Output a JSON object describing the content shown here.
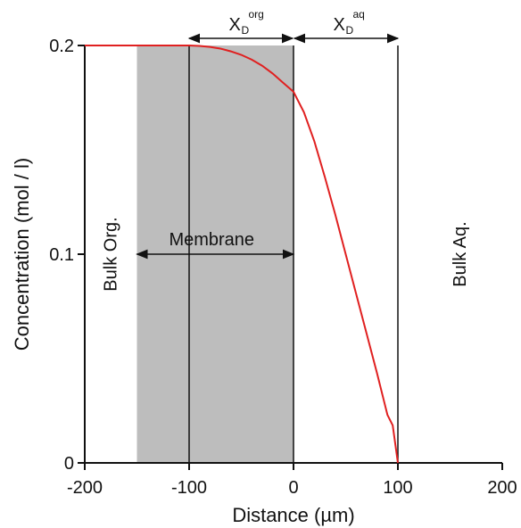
{
  "chart_data": {
    "type": "line",
    "xlabel": "Distance (µm)",
    "ylabel": "Concentration (mol / l)",
    "xlim": [
      -200,
      200
    ],
    "ylim": [
      0,
      0.2
    ],
    "x_ticks": [
      -200,
      -100,
      0,
      100,
      200
    ],
    "x_tick_labels": [
      "-200",
      "-100",
      "0",
      "100",
      "200"
    ],
    "y_ticks": [
      0,
      0.1,
      0.2
    ],
    "y_tick_labels": [
      "0",
      "0.1",
      "0.2"
    ],
    "grid": false,
    "colors": {
      "curve": "#e02020",
      "membrane_fill": "#bdbdbd",
      "lines": "#111111"
    },
    "series": [
      {
        "x": [
          -200,
          -150,
          -110,
          -100,
          -90,
          -80,
          -70,
          -60,
          -50,
          -40,
          -30,
          -20,
          -10,
          0,
          10,
          20,
          30,
          40,
          50,
          60,
          70,
          80,
          90,
          95,
          100
        ],
        "y": [
          0.2,
          0.2,
          0.2,
          0.2,
          0.1998,
          0.1993,
          0.1985,
          0.1972,
          0.1955,
          0.1932,
          0.1903,
          0.1866,
          0.1822,
          0.1778,
          0.168,
          0.154,
          0.137,
          0.119,
          0.1,
          0.081,
          0.062,
          0.043,
          0.023,
          0.018,
          0.0
        ]
      }
    ],
    "membrane_region": [
      -150,
      0
    ],
    "vertical_lines": [
      -200,
      -100,
      0,
      100
    ],
    "annotations": {
      "bulk_org": "Bulk Org.",
      "bulk_aq": "Bulk Aq.",
      "membrane": "Membrane",
      "xd_org_main": "X",
      "xd_org_sub": "D",
      "xd_org_sup": "org",
      "xd_aq_main": "X",
      "xd_aq_sub": "D",
      "xd_aq_sup": "aq"
    },
    "arrows": {
      "membrane": [
        -150,
        0
      ],
      "xd_org": [
        -100,
        0
      ],
      "xd_aq": [
        0,
        100
      ]
    }
  }
}
